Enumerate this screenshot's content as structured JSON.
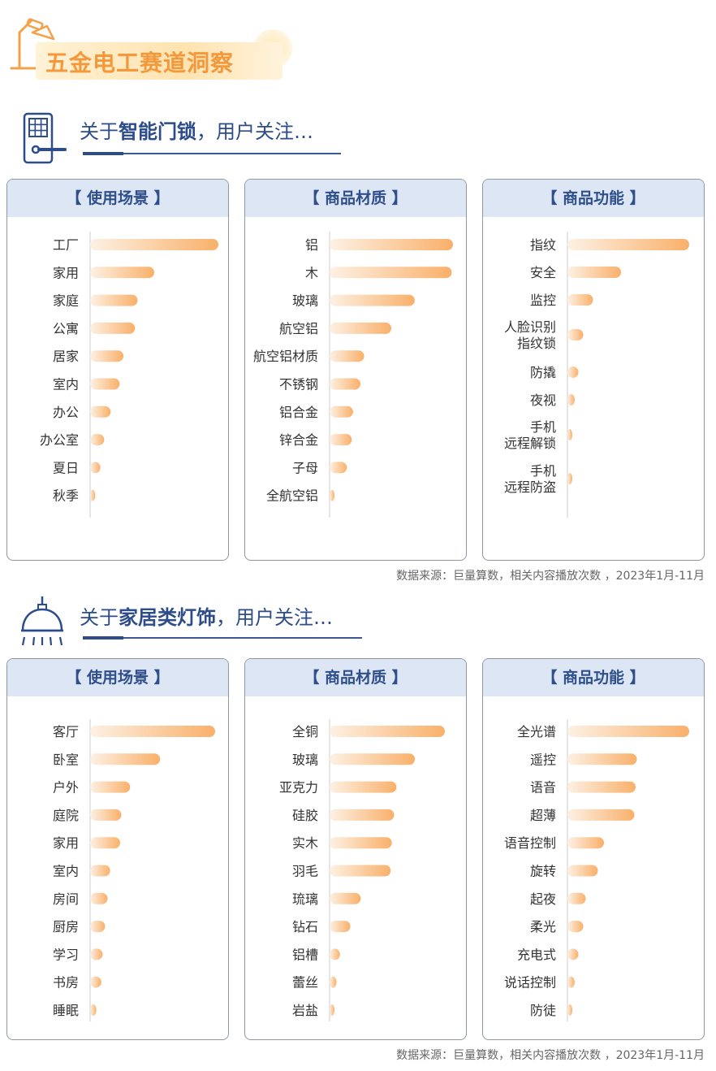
{
  "page": {
    "title": "五金电工赛道洞察"
  },
  "sections": [
    {
      "title_prefix": "关于",
      "title_bold": "智能门锁",
      "title_suffix": "，用户关注…",
      "source": "数据来源：巨量算数，相关内容播放次数 ，2023年1月-11月",
      "icon": "door-lock-icon"
    },
    {
      "title_prefix": "关于",
      "title_bold": "家居类灯饰",
      "title_suffix": "，用户关注…",
      "source": "数据来源：巨量算数，相关内容播放次数 ，2023年1月-11月",
      "icon": "pendant-lamp-icon"
    }
  ],
  "colors": {
    "bar_start": "#fdf1e4",
    "bar_end": "#f9b06a",
    "header_bg": "#dde6f4",
    "header_text": "#2f4f8b",
    "title_orange": "#f3983b"
  },
  "chart_data": [
    {
      "type": "bar",
      "orientation": "horizontal",
      "title": "【 使用场景 】",
      "categories": [
        "工厂",
        "家用",
        "家庭",
        "公寓",
        "居家",
        "室内",
        "办公",
        "办公室",
        "夏日",
        "秋季"
      ],
      "values": [
        100,
        50,
        37,
        35,
        26,
        23,
        16,
        11,
        8,
        4
      ],
      "xlim": [
        0,
        100
      ]
    },
    {
      "type": "bar",
      "orientation": "horizontal",
      "title": "【 商品材质 】",
      "categories": [
        "铝",
        "木",
        "玻璃",
        "航空铝",
        "航空铝材质",
        "不锈钢",
        "铝合金",
        "锌合金",
        "子母",
        "全航空铝"
      ],
      "values": [
        100,
        99,
        69,
        50,
        28,
        25,
        19,
        18,
        14,
        4
      ],
      "xlim": [
        0,
        100
      ]
    },
    {
      "type": "bar",
      "orientation": "horizontal",
      "title": "【 商品功能 】",
      "categories": [
        "指纹",
        "安全",
        "监控",
        "人脸识别\n指纹锁",
        "防撬",
        "夜视",
        "手机\n远程解锁",
        "手机\n远程防盗"
      ],
      "values": [
        100,
        44,
        21,
        13,
        9,
        6,
        4,
        3
      ],
      "xlim": [
        0,
        100
      ]
    },
    {
      "type": "bar",
      "orientation": "horizontal",
      "title": "【 使用场景 】",
      "categories": [
        "客厅",
        "卧室",
        "户外",
        "庭院",
        "家用",
        "室内",
        "房间",
        "厨房",
        "学习",
        "书房",
        "睡眠"
      ],
      "values": [
        100,
        56,
        32,
        25,
        24,
        16,
        14,
        12,
        10,
        9,
        5
      ],
      "xlim": [
        0,
        100
      ]
    },
    {
      "type": "bar",
      "orientation": "horizontal",
      "title": "【 商品材质 】",
      "categories": [
        "全铜",
        "玻璃",
        "亚克力",
        "硅胶",
        "实木",
        "羽毛",
        "琉璃",
        "钻石",
        "铝槽",
        "蕾丝",
        "岩盐"
      ],
      "values": [
        100,
        74,
        58,
        56,
        54,
        53,
        27,
        18,
        9,
        6,
        4
      ],
      "xlim": [
        0,
        100
      ]
    },
    {
      "type": "bar",
      "orientation": "horizontal",
      "title": "【 商品功能 】",
      "categories": [
        "全光谱",
        "遥控",
        "语音",
        "超薄",
        "语音控制",
        "旋转",
        "起夜",
        "柔光",
        "充电式",
        "说话控制",
        "防徒"
      ],
      "values": [
        100,
        57,
        56,
        55,
        30,
        25,
        15,
        13,
        9,
        6,
        4
      ],
      "xlim": [
        0,
        100
      ]
    }
  ]
}
